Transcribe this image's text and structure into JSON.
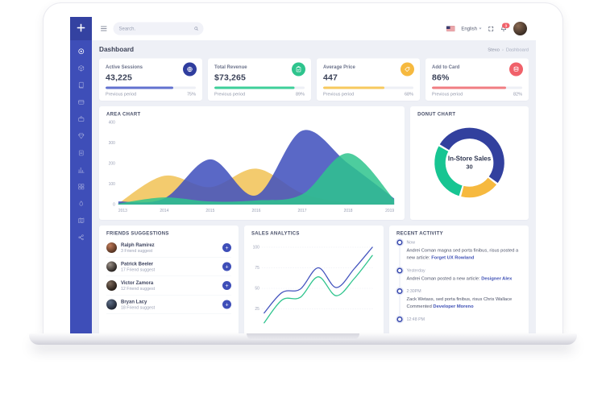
{
  "topbar": {
    "search_placeholder": "Search.",
    "language": "English",
    "notification_count": "3"
  },
  "page_header": {
    "title": "Dashboard",
    "breadcrumb_root": "Stexo",
    "breadcrumb_separator": "›",
    "breadcrumb_current": "Dashboard"
  },
  "sidebar": {
    "items": [
      "dashboard",
      "products",
      "library",
      "wallet",
      "briefcase",
      "gem",
      "tasks",
      "chart",
      "grid",
      "droplet",
      "map",
      "share"
    ]
  },
  "stat_cards": [
    {
      "label": "Active Sessions",
      "value": "43,225",
      "icon": "globe-icon",
      "accent": "#2f3d9e",
      "bar_color": "#6272cf",
      "progress": 75,
      "footer_label": "Previous period",
      "footer_value": "75%"
    },
    {
      "label": "Total Revenue",
      "value": "$73,265",
      "icon": "clipboard-check-icon",
      "accent": "#2ec48d",
      "bar_color": "#3ecf9a",
      "progress": 89,
      "footer_label": "Previous period",
      "footer_value": "89%"
    },
    {
      "label": "Average Price",
      "value": "447",
      "icon": "tag-icon",
      "accent": "#f6b93f",
      "bar_color": "#f7c95e",
      "progress": 68,
      "footer_label": "Previous period",
      "footer_value": "68%"
    },
    {
      "label": "Add to Card",
      "value": "86%",
      "icon": "layers-icon",
      "accent": "#f0616a",
      "bar_color": "#f07d82",
      "progress": 82,
      "footer_label": "Previous period",
      "footer_value": "82%"
    }
  ],
  "area_chart": {
    "type": "area",
    "title": "AREA CHART",
    "x": [
      "2013",
      "2014",
      "2015",
      "2016",
      "2017",
      "2018",
      "2019"
    ],
    "yticks": [
      0,
      100,
      200,
      300,
      400
    ],
    "ylim": [
      0,
      400
    ],
    "grid": false,
    "series": [
      {
        "name": "yellow",
        "color": "#f2c55e",
        "opacity": 0.9,
        "values": [
          5,
          140,
          85,
          175,
          55,
          10,
          5
        ]
      },
      {
        "name": "blue",
        "color": "#4353be",
        "opacity": 0.88,
        "values": [
          15,
          30,
          220,
          45,
          360,
          200,
          30
        ]
      },
      {
        "name": "green",
        "color": "#2ec48d",
        "opacity": 0.85,
        "values": [
          5,
          35,
          15,
          20,
          50,
          250,
          25
        ]
      }
    ]
  },
  "donut_chart": {
    "type": "pie",
    "title": "DONUT CHART",
    "center_label": "In-Store Sales",
    "center_value": "30",
    "start_angle": -60,
    "segments": [
      {
        "name": "blue",
        "value": 52,
        "color": "#32409e"
      },
      {
        "name": "yellow",
        "value": 19,
        "color": "#f6b93f"
      },
      {
        "name": "green",
        "value": 29,
        "color": "#17c592"
      }
    ]
  },
  "sales_chart": {
    "type": "line",
    "title": "SALES ANALYTICS",
    "yticks": [
      25,
      50,
      75,
      100
    ],
    "ylim": [
      0,
      110
    ],
    "grid": true,
    "series": [
      {
        "name": "blue",
        "color": "#4353be",
        "values": [
          20,
          45,
          49,
          75,
          51,
          74,
          100
        ]
      },
      {
        "name": "green",
        "color": "#2ec48d",
        "values": [
          8,
          36,
          39,
          64,
          41,
          62,
          90
        ]
      }
    ]
  },
  "friends": {
    "title": "FRIENDS SUGGESTIONS",
    "add_label": "+",
    "items": [
      {
        "name": "Ralph Ramirez",
        "meta": "3 Friend suggest"
      },
      {
        "name": "Patrick Beeler",
        "meta": "17 Friend suggest"
      },
      {
        "name": "Victor Zamora",
        "meta": "12 Friend suggest"
      },
      {
        "name": "Bryan Lacy",
        "meta": "18 Friend suggest"
      }
    ]
  },
  "recent_activity": {
    "title": "RECENT ACTIVITY",
    "items": [
      {
        "time": "Now",
        "text": "Andrei Coman magna sed porta finibus, risus posted a new article:",
        "link": "Forget UX Rowland"
      },
      {
        "time": "Yesterday",
        "text": "Andrei Coman posted a new article:",
        "link": "Designer Alex"
      },
      {
        "time": "2:30PM",
        "text": "Zack Wetass, sed porta finibus, risus Chris Wallace Commented",
        "link": "Developer Moreno"
      },
      {
        "time": "12:48 PM",
        "text": "",
        "link": ""
      }
    ]
  }
}
